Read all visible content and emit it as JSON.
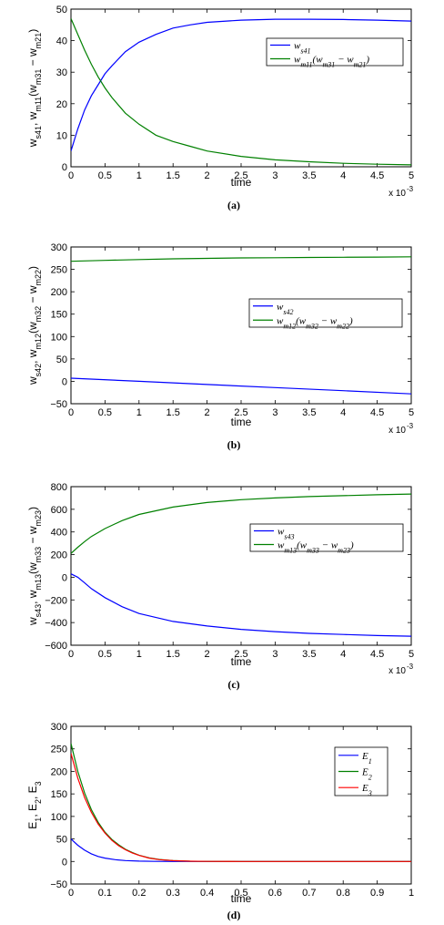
{
  "figure": {
    "panels": [
      {
        "caption": "(a)",
        "legend_position": "top-right"
      },
      {
        "caption": "(b)",
        "legend_position": "center-right"
      },
      {
        "caption": "(c)",
        "legend_position": "center-right"
      },
      {
        "caption": "(d)",
        "legend_position": "top-right"
      }
    ]
  },
  "chart_data": [
    {
      "type": "line",
      "title": "",
      "xlabel": "time",
      "ylabel": "w_s41, w_m11(w_m31 − w_m21)",
      "x_multiplier_label": "x 10",
      "x_multiplier_exponent": "-3",
      "xlim": [
        0,
        5
      ],
      "ylim": [
        0,
        50
      ],
      "xticks": [
        "0",
        "0.5",
        "1",
        "1.5",
        "2",
        "2.5",
        "3",
        "3.5",
        "4",
        "4.5",
        "5"
      ],
      "yticks": [
        "0",
        "10",
        "20",
        "30",
        "40",
        "50"
      ],
      "grid": false,
      "series": [
        {
          "name": "w_s41",
          "color": "#0000ff",
          "x": [
            0,
            0.1,
            0.2,
            0.3,
            0.4,
            0.5,
            0.6,
            0.8,
            1.0,
            1.25,
            1.5,
            1.75,
            2.0,
            2.5,
            3.0,
            3.5,
            4.0,
            4.5,
            5.0
          ],
          "y": [
            5,
            12,
            18,
            22.5,
            26,
            29.5,
            32,
            36.5,
            39.5,
            42,
            44,
            45,
            45.8,
            46.5,
            46.8,
            46.8,
            46.7,
            46.5,
            46.2
          ]
        },
        {
          "name": "w_m11(w_m31 − w_m21)",
          "color": "#008000",
          "x": [
            0,
            0.1,
            0.2,
            0.3,
            0.4,
            0.5,
            0.6,
            0.8,
            1.0,
            1.25,
            1.5,
            1.75,
            2.0,
            2.5,
            3.0,
            3.5,
            4.0,
            4.5,
            5.0
          ],
          "y": [
            47,
            42,
            37,
            32.5,
            28.5,
            25,
            22,
            17,
            13.5,
            10,
            8,
            6.5,
            5,
            3.3,
            2.2,
            1.6,
            1.1,
            0.8,
            0.6
          ]
        }
      ]
    },
    {
      "type": "line",
      "title": "",
      "xlabel": "time",
      "ylabel": "w_s42, w_m12(w_m32 − w_m22)",
      "x_multiplier_label": "x 10",
      "x_multiplier_exponent": "-3",
      "xlim": [
        0,
        5
      ],
      "ylim": [
        -50,
        300
      ],
      "xticks": [
        "0",
        "0.5",
        "1",
        "1.5",
        "2",
        "2.5",
        "3",
        "3.5",
        "4",
        "4.5",
        "5"
      ],
      "yticks": [
        "−50",
        "0",
        "50",
        "100",
        "150",
        "200",
        "250",
        "300"
      ],
      "grid": false,
      "series": [
        {
          "name": "w_s42",
          "color": "#0000ff",
          "x": [
            0,
            1,
            2,
            3,
            4,
            5
          ],
          "y": [
            7,
            0,
            -7,
            -14,
            -21,
            -28
          ]
        },
        {
          "name": "w_m12(w_m32 − w_m22)",
          "color": "#008000",
          "x": [
            0,
            0.5,
            1,
            1.5,
            2,
            2.5,
            3,
            3.5,
            4,
            4.5,
            5
          ],
          "y": [
            268,
            270,
            272,
            273.5,
            274.5,
            275.5,
            276,
            276.5,
            277,
            277.5,
            278
          ]
        }
      ]
    },
    {
      "type": "line",
      "title": "",
      "xlabel": "time",
      "ylabel": "w_s43, w_m13(w_m33 − w_m23)",
      "x_multiplier_label": "x 10",
      "x_multiplier_exponent": "-3",
      "xlim": [
        0,
        5
      ],
      "ylim": [
        -600,
        800
      ],
      "xticks": [
        "0",
        "0.5",
        "1",
        "1.5",
        "2",
        "2.5",
        "3",
        "3.5",
        "4",
        "4.5",
        "5"
      ],
      "yticks": [
        "−600",
        "−400",
        "−200",
        "0",
        "200",
        "400",
        "600",
        "800"
      ],
      "grid": false,
      "series": [
        {
          "name": "w_s43",
          "color": "#0000ff",
          "x": [
            0,
            0.1,
            0.2,
            0.3,
            0.5,
            0.75,
            1.0,
            1.5,
            2.0,
            2.5,
            3.0,
            3.5,
            4.0,
            4.5,
            5.0
          ],
          "y": [
            30,
            0,
            -50,
            -100,
            -180,
            -260,
            -320,
            -390,
            -430,
            -460,
            -480,
            -495,
            -505,
            -515,
            -520
          ]
        },
        {
          "name": "w_m13(w_m33 − w_m23)",
          "color": "#008000",
          "x": [
            0,
            0.1,
            0.2,
            0.3,
            0.5,
            0.75,
            1.0,
            1.5,
            2.0,
            2.5,
            3.0,
            3.5,
            4.0,
            4.5,
            5.0
          ],
          "y": [
            210,
            265,
            315,
            360,
            430,
            500,
            555,
            620,
            660,
            685,
            700,
            712,
            720,
            728,
            735
          ]
        }
      ]
    },
    {
      "type": "line",
      "title": "",
      "xlabel": "time",
      "ylabel": "E_1, E_2, E_3",
      "xlim": [
        0,
        1
      ],
      "ylim": [
        -50,
        300
      ],
      "xticks": [
        "0",
        "0.1",
        "0.2",
        "0.3",
        "0.4",
        "0.5",
        "0.6",
        "0.7",
        "0.8",
        "0.9",
        "1"
      ],
      "yticks": [
        "−50",
        "0",
        "50",
        "100",
        "150",
        "200",
        "250",
        "300"
      ],
      "grid": false,
      "series": [
        {
          "name": "E_1",
          "color": "#0000ff",
          "x": [
            0,
            0.02,
            0.04,
            0.06,
            0.08,
            0.1,
            0.13,
            0.16,
            0.2,
            0.25,
            0.3,
            0.4,
            0.5,
            0.6,
            0.7,
            0.8,
            0.9,
            1.0
          ],
          "y": [
            50,
            36,
            25,
            17,
            11,
            7.5,
            4,
            2,
            0.8,
            0.2,
            0,
            0,
            0,
            0,
            0,
            0,
            0,
            0
          ]
        },
        {
          "name": "E_2",
          "color": "#008000",
          "x": [
            0,
            0.02,
            0.04,
            0.06,
            0.08,
            0.1,
            0.12,
            0.14,
            0.16,
            0.18,
            0.2,
            0.23,
            0.26,
            0.3,
            0.35,
            0.4,
            0.5,
            0.6,
            0.7,
            0.8,
            0.9,
            1.0
          ],
          "y": [
            262,
            200,
            152,
            115,
            87,
            65,
            49,
            37,
            27,
            20,
            14,
            8,
            4.5,
            2,
            0.6,
            0.2,
            0,
            0,
            0,
            0,
            0,
            0
          ]
        },
        {
          "name": "E_3",
          "color": "#ff0000",
          "x": [
            0,
            0.02,
            0.04,
            0.06,
            0.08,
            0.1,
            0.12,
            0.14,
            0.16,
            0.18,
            0.2,
            0.23,
            0.26,
            0.3,
            0.35,
            0.4,
            0.5,
            0.6,
            0.7,
            0.8,
            0.9,
            1.0
          ],
          "y": [
            240,
            185,
            142,
            109,
            83,
            63,
            47,
            35,
            26,
            19,
            13.5,
            7.5,
            4,
            1.8,
            0.5,
            0.2,
            0,
            0,
            0,
            0,
            0,
            0
          ]
        }
      ]
    }
  ]
}
